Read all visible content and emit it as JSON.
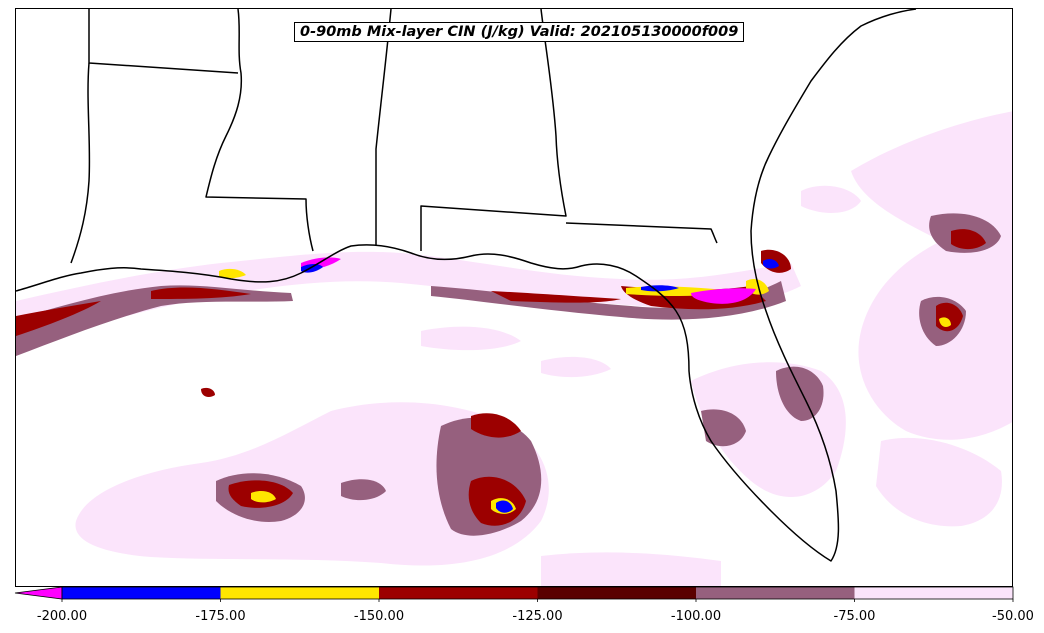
{
  "title": "0-90mb Mix-layer CIN (J/kg) Valid: 202105130000f009",
  "colorbar": {
    "min": -200,
    "max": -50,
    "extend": "min",
    "bins": [
      {
        "from": -200,
        "to": -175,
        "color": "#0000ff"
      },
      {
        "from": -175,
        "to": -150,
        "color": "#ffe600"
      },
      {
        "from": -150,
        "to": -125,
        "color": "#9c0000"
      },
      {
        "from": -125,
        "to": -100,
        "color": "#5a0000"
      },
      {
        "from": -100,
        "to": -75,
        "color": "#96607e"
      },
      {
        "from": -75,
        "to": -50,
        "color": "#fbe4fb"
      }
    ],
    "extend_color": "#ff00ff",
    "tick_labels": [
      "-200.00",
      "-175.00",
      "-150.00",
      "-125.00",
      "-100.00",
      "-75.00",
      "-50.00"
    ]
  }
}
